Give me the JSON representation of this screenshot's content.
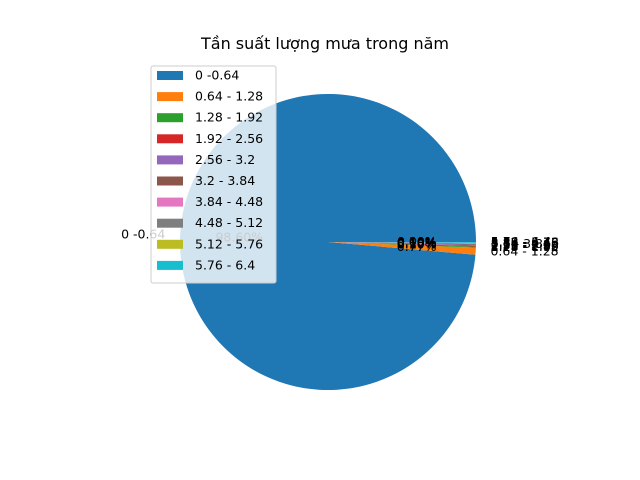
{
  "chart_data": {
    "type": "pie",
    "title": "Tần suất lượng mưa trong năm",
    "legend_position": "upper-left",
    "categories": [
      "0 -0.64",
      "0.64 - 1.28",
      "1.28 - 1.92",
      "1.92 - 2.56",
      "2.56 - 3.2",
      "3.2 - 3.84",
      "3.84 - 4.48",
      "4.48 - 5.12",
      "5.12 - 5.76",
      "5.76 - 6.4"
    ],
    "values": [
      98.6,
      0.77,
      0.1,
      0.1,
      0.1,
      0.1,
      0.1,
      0.0,
      0.0,
      0.1
    ],
    "pct_labels": [
      "98.60%",
      "0.77%",
      "0.10%",
      "0.10%",
      "0.10%",
      "0.10%",
      "0.10%",
      "0.00%",
      "0.00%",
      "0.10%"
    ],
    "colors": [
      "#1f77b4",
      "#ff7f0e",
      "#2ca02c",
      "#d62728",
      "#9467bd",
      "#8c564b",
      "#e377c2",
      "#7f7f7f",
      "#bcbd22",
      "#17becf"
    ]
  }
}
